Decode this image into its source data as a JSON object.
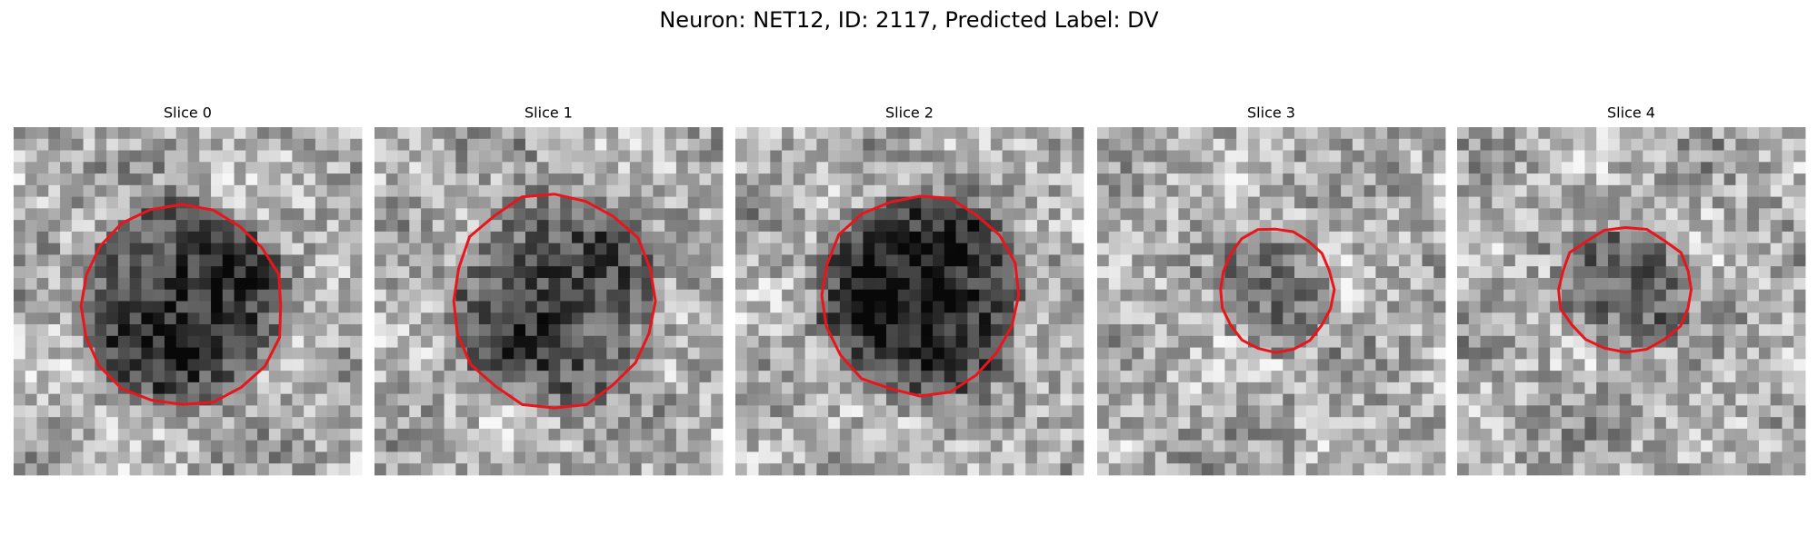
{
  "title": "Neuron: NET12, ID: 2117, Predicted Label: DV",
  "panels": [
    {
      "title": "Slice 0"
    },
    {
      "title": "Slice 1"
    },
    {
      "title": "Slice 2"
    },
    {
      "title": "Slice 3"
    },
    {
      "title": "Slice 4"
    }
  ]
}
